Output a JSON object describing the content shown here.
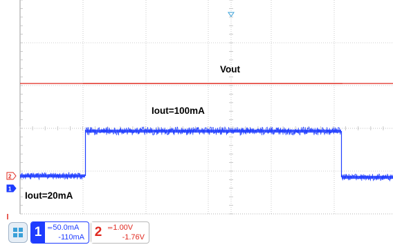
{
  "colors": {
    "ch1": "#1e3cff",
    "ch2": "#e0281e",
    "grid": "#bdbdbd",
    "trigger": "#3aa0d8"
  },
  "annotations": {
    "vout": "Vout",
    "iout_high": "Iout=100mA",
    "iout_low": "Iout=20mA"
  },
  "channels": [
    {
      "number": "1",
      "scale": "50.0mA",
      "offset": "-110mA",
      "coupling_icon": "dc-coupling-icon"
    },
    {
      "number": "2",
      "scale": "1.00V",
      "offset": "-1.76V",
      "coupling_icon": "dc-coupling-icon"
    }
  ],
  "icons": {
    "menu": "grid-menu-icon",
    "trigger": "trigger-position-icon",
    "ch1_ref": "channel-1-ground-marker-icon",
    "ch2_ref": "channel-2-ground-marker-icon"
  }
}
